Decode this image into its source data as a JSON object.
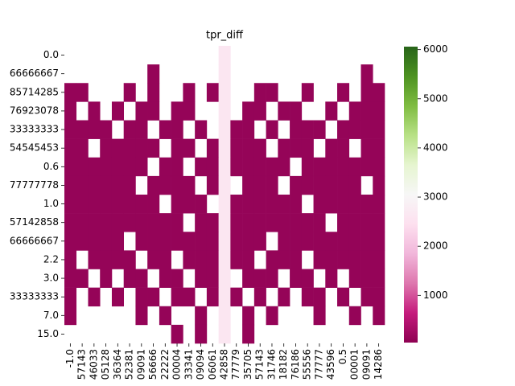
{
  "chart_data": {
    "type": "heatmap",
    "title": "tpr_diff",
    "colormap": "PiYG",
    "x_labels": [
      "-1.0",
      "57143",
      "46033",
      "05128",
      "36364",
      "52381",
      "09091",
      "56666",
      "22222",
      "00004",
      "33341",
      "09094",
      "06061",
      "42858",
      "77779",
      "35705",
      "57143",
      "31746",
      "18182",
      "76186",
      "55556",
      "77777",
      "43596",
      "0.5",
      "00001",
      "09091",
      "14286"
    ],
    "y_labels": [
      "0.0",
      "66666667",
      "85714285",
      "76923078",
      "33333333",
      "54545453",
      "0.6",
      "77777778",
      "1.0",
      "57142858",
      "66666667",
      "2.2",
      "3.0",
      "33333333",
      "7.0",
      "15.0"
    ],
    "z": [
      [
        null,
        null,
        null,
        null,
        null,
        null,
        null,
        null,
        null,
        null,
        null,
        null,
        null,
        2600,
        null,
        null,
        null,
        null,
        null,
        null,
        null,
        null,
        null,
        null,
        null,
        null,
        null
      ],
      [
        null,
        null,
        null,
        null,
        null,
        null,
        null,
        120,
        null,
        null,
        null,
        null,
        null,
        2600,
        null,
        null,
        null,
        null,
        null,
        null,
        null,
        null,
        null,
        null,
        null,
        120,
        null
      ],
      [
        120,
        120,
        null,
        null,
        null,
        120,
        null,
        120,
        null,
        null,
        120,
        null,
        120,
        2600,
        null,
        null,
        120,
        120,
        null,
        null,
        120,
        null,
        null,
        120,
        null,
        120,
        120
      ],
      [
        120,
        null,
        120,
        null,
        120,
        null,
        120,
        120,
        null,
        120,
        120,
        null,
        null,
        2600,
        null,
        120,
        120,
        null,
        120,
        120,
        null,
        null,
        120,
        null,
        120,
        120,
        120
      ],
      [
        120,
        120,
        120,
        120,
        null,
        120,
        120,
        null,
        120,
        120,
        null,
        120,
        null,
        2600,
        120,
        120,
        null,
        120,
        null,
        120,
        120,
        120,
        null,
        120,
        120,
        120,
        120
      ],
      [
        120,
        120,
        null,
        120,
        120,
        120,
        120,
        120,
        null,
        120,
        120,
        null,
        120,
        2600,
        120,
        120,
        120,
        null,
        120,
        120,
        120,
        null,
        120,
        120,
        null,
        120,
        120
      ],
      [
        120,
        120,
        120,
        120,
        120,
        120,
        120,
        null,
        120,
        120,
        null,
        120,
        120,
        2600,
        120,
        120,
        120,
        120,
        120,
        null,
        120,
        120,
        120,
        120,
        120,
        120,
        120
      ],
      [
        120,
        120,
        120,
        120,
        120,
        120,
        null,
        120,
        120,
        120,
        120,
        null,
        120,
        2600,
        null,
        120,
        120,
        120,
        null,
        120,
        120,
        120,
        120,
        120,
        120,
        null,
        120
      ],
      [
        120,
        120,
        120,
        120,
        120,
        120,
        120,
        120,
        null,
        120,
        120,
        120,
        null,
        2600,
        120,
        120,
        120,
        120,
        120,
        120,
        null,
        120,
        120,
        120,
        120,
        120,
        120
      ],
      [
        120,
        120,
        120,
        120,
        120,
        120,
        120,
        120,
        120,
        120,
        null,
        120,
        120,
        2600,
        120,
        120,
        120,
        120,
        120,
        120,
        120,
        120,
        null,
        120,
        120,
        120,
        120
      ],
      [
        120,
        120,
        120,
        120,
        120,
        null,
        120,
        120,
        120,
        120,
        120,
        120,
        120,
        2600,
        120,
        120,
        120,
        null,
        120,
        120,
        120,
        120,
        120,
        120,
        120,
        120,
        120
      ],
      [
        120,
        null,
        120,
        120,
        120,
        120,
        null,
        120,
        120,
        null,
        120,
        120,
        120,
        2600,
        120,
        120,
        null,
        120,
        120,
        120,
        null,
        120,
        120,
        120,
        120,
        120,
        120
      ],
      [
        120,
        120,
        null,
        120,
        null,
        120,
        120,
        null,
        120,
        120,
        null,
        120,
        120,
        2600,
        null,
        120,
        120,
        120,
        null,
        120,
        120,
        null,
        120,
        null,
        120,
        120,
        120
      ],
      [
        120,
        null,
        120,
        null,
        120,
        null,
        120,
        120,
        null,
        120,
        120,
        null,
        120,
        2600,
        120,
        null,
        120,
        null,
        120,
        null,
        120,
        120,
        null,
        120,
        null,
        120,
        120
      ],
      [
        120,
        null,
        null,
        null,
        null,
        null,
        120,
        null,
        120,
        null,
        null,
        120,
        null,
        2600,
        null,
        120,
        null,
        120,
        null,
        null,
        null,
        120,
        null,
        null,
        120,
        null,
        120
      ],
      [
        null,
        null,
        null,
        null,
        null,
        null,
        null,
        null,
        null,
        120,
        null,
        120,
        null,
        2600,
        null,
        120,
        null,
        null,
        null,
        null,
        null,
        null,
        null,
        null,
        null,
        null,
        null
      ]
    ],
    "clim": [
      40,
      6060
    ],
    "cbar_ticks": [
      1000,
      2000,
      3000,
      4000,
      5000,
      6000
    ]
  }
}
